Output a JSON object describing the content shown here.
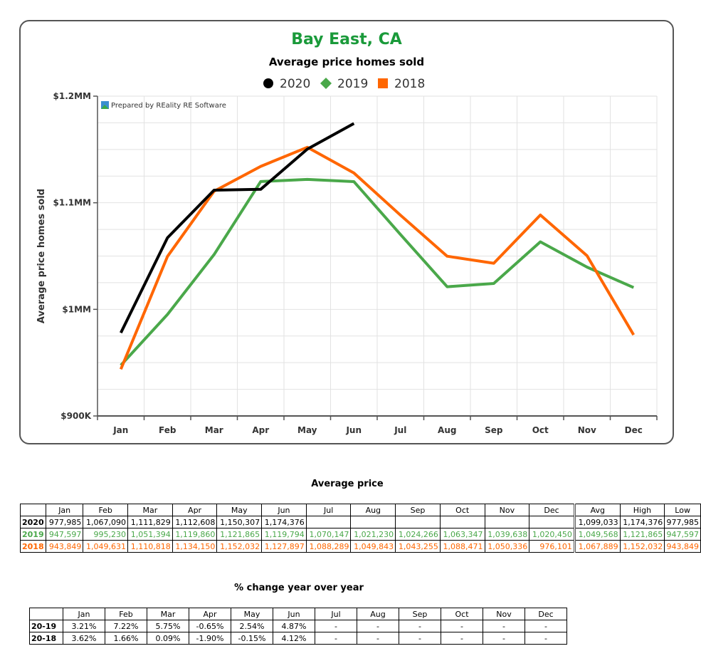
{
  "chart_data": {
    "type": "line",
    "title": "Bay East, CA",
    "subtitle": "Average price homes sold",
    "ylabel": "Average price homes sold",
    "watermark": "Prepared by REality RE Software",
    "categories": [
      "Jan",
      "Feb",
      "Mar",
      "Apr",
      "May",
      "Jun",
      "Jul",
      "Aug",
      "Sep",
      "Oct",
      "Nov",
      "Dec"
    ],
    "ylim": [
      900000,
      1200000
    ],
    "yticks": [
      900000,
      1000000,
      1100000,
      1200000
    ],
    "ytick_labels": [
      "$900K",
      "$1MM",
      "$1.1MM",
      "$1.2MM"
    ],
    "grid": true,
    "legend_position": "top",
    "series": [
      {
        "name": "2020",
        "color": "#000000",
        "marker": "circle",
        "values": [
          977985,
          1067090,
          1111829,
          1112608,
          1150307,
          1174376,
          null,
          null,
          null,
          null,
          null,
          null
        ]
      },
      {
        "name": "2019",
        "color": "#4aa84a",
        "marker": "diamond",
        "values": [
          947597,
          995230,
          1051394,
          1119860,
          1121865,
          1119794,
          1070147,
          1021230,
          1024266,
          1063347,
          1039638,
          1020450
        ]
      },
      {
        "name": "2018",
        "color": "#ff6600",
        "marker": "square",
        "values": [
          943849,
          1049631,
          1110818,
          1134150,
          1152032,
          1127897,
          1088289,
          1049843,
          1043255,
          1088471,
          1050336,
          976101
        ]
      }
    ]
  },
  "avg_table": {
    "title": "Average price",
    "months": [
      "Jan",
      "Feb",
      "Mar",
      "Apr",
      "May",
      "Jun",
      "Jul",
      "Aug",
      "Sep",
      "Oct",
      "Nov",
      "Dec"
    ],
    "stat_headers": [
      "Avg",
      "High",
      "Low"
    ],
    "rows": [
      {
        "year": "2020",
        "cls": "c2020",
        "values": [
          "977,985",
          "1,067,090",
          "1,111,829",
          "1,112,608",
          "1,150,307",
          "1,174,376",
          "",
          "",
          "",
          "",
          "",
          ""
        ],
        "stats": [
          "1,099,033",
          "1,174,376",
          "977,985"
        ]
      },
      {
        "year": "2019",
        "cls": "c2019",
        "values": [
          "947,597",
          "995,230",
          "1,051,394",
          "1,119,860",
          "1,121,865",
          "1,119,794",
          "1,070,147",
          "1,021,230",
          "1,024,266",
          "1,063,347",
          "1,039,638",
          "1,020,450"
        ],
        "stats": [
          "1,049,568",
          "1,121,865",
          "947,597"
        ]
      },
      {
        "year": "2018",
        "cls": "c2018",
        "values": [
          "943,849",
          "1,049,631",
          "1,110,818",
          "1,134,150",
          "1,152,032",
          "1,127,897",
          "1,088,289",
          "1,049,843",
          "1,043,255",
          "1,088,471",
          "1,050,336",
          "976,101"
        ],
        "stats": [
          "1,067,889",
          "1,152,032",
          "943,849"
        ]
      }
    ]
  },
  "pct_table": {
    "title": "% change year over year",
    "months": [
      "Jan",
      "Feb",
      "Mar",
      "Apr",
      "May",
      "Jun",
      "Jul",
      "Aug",
      "Sep",
      "Oct",
      "Nov",
      "Dec"
    ],
    "rows": [
      {
        "label": "20-19",
        "values": [
          "3.21%",
          "7.22%",
          "5.75%",
          "-0.65%",
          "2.54%",
          "4.87%",
          "-",
          "-",
          "-",
          "-",
          "-",
          "-"
        ]
      },
      {
        "label": "20-18",
        "values": [
          "3.62%",
          "1.66%",
          "0.09%",
          "-1.90%",
          "-0.15%",
          "4.12%",
          "-",
          "-",
          "-",
          "-",
          "-",
          "-"
        ]
      }
    ]
  }
}
